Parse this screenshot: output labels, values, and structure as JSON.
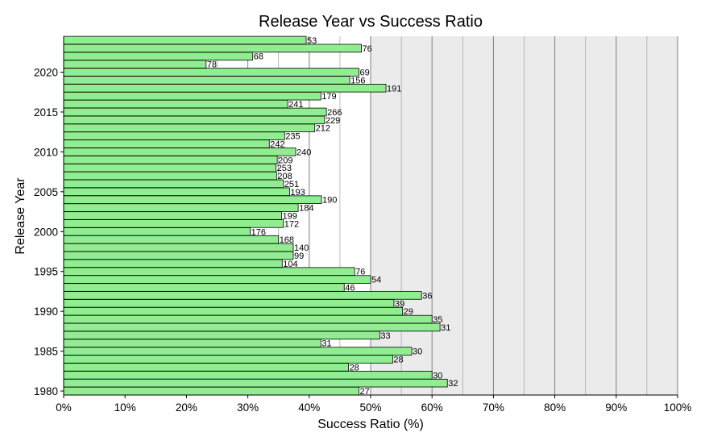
{
  "chart_data": {
    "type": "bar",
    "orientation": "horizontal",
    "title": "Release Year vs Success Ratio",
    "xlabel": "Success Ratio (%)",
    "ylabel": "Release Year",
    "xlim": [
      0,
      100
    ],
    "x_ticks": [
      "0%",
      "10%",
      "20%",
      "30%",
      "40%",
      "50%",
      "60%",
      "70%",
      "80%",
      "90%",
      "100%"
    ],
    "y_ticks": [
      "1980",
      "1985",
      "1990",
      "1995",
      "2000",
      "2005",
      "2010",
      "2015",
      "2020"
    ],
    "categories": [
      1980,
      1981,
      1982,
      1983,
      1984,
      1985,
      1986,
      1987,
      1988,
      1989,
      1990,
      1991,
      1992,
      1993,
      1994,
      1995,
      1996,
      1997,
      1998,
      1999,
      2000,
      2001,
      2002,
      2003,
      2004,
      2005,
      2006,
      2007,
      2008,
      2009,
      2010,
      2011,
      2012,
      2013,
      2014,
      2015,
      2016,
      2017,
      2018,
      2019,
      2020,
      2021,
      2022,
      2023,
      2024
    ],
    "values": [
      48.1,
      62.5,
      60.0,
      46.4,
      53.6,
      56.7,
      41.9,
      51.5,
      61.3,
      60.0,
      55.2,
      53.8,
      58.3,
      45.7,
      50.0,
      47.4,
      35.6,
      37.4,
      37.4,
      35.0,
      30.4,
      35.8,
      35.5,
      38.2,
      42.0,
      36.8,
      35.8,
      34.7,
      34.6,
      34.8,
      37.8,
      33.5,
      36.0,
      40.9,
      42.5,
      42.8,
      36.5,
      41.9,
      52.5,
      46.6,
      48.1,
      23.2,
      30.8,
      48.5,
      39.5
    ],
    "data_labels": [
      "27",
      "32",
      "30",
      "28",
      "28",
      "30",
      "31",
      "33",
      "31",
      "35",
      "29",
      "39",
      "36",
      "46",
      "54",
      "76",
      "104",
      "99",
      "140",
      "168",
      "176",
      "172",
      "199",
      "184",
      "190",
      "193",
      "251",
      "208",
      "253",
      "209",
      "240",
      "242",
      "235",
      "212",
      "229",
      "266",
      "241",
      "179",
      "191",
      "156",
      "69",
      "78",
      "68",
      "76",
      "53"
    ],
    "bar_color": "#90ee90",
    "bar_edge_color": "#000000",
    "plot_background_left": "#ffffff",
    "plot_background_right": "#ebebeb",
    "background_split_at": 50,
    "grid": true,
    "legend": false
  }
}
